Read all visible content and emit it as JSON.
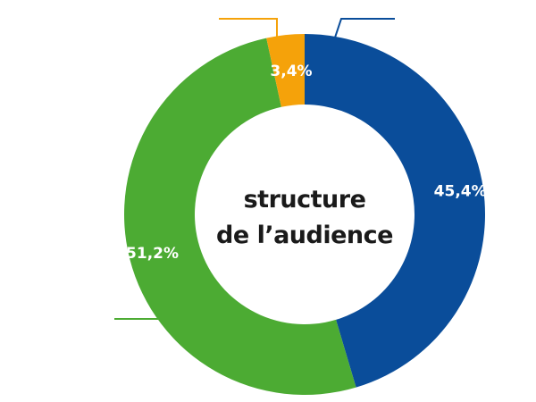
{
  "chart_data": {
    "type": "pie",
    "title": "structure de l’audience",
    "title_lines": [
      "structure",
      "de l’audience"
    ],
    "categories": [
      "",
      "",
      ""
    ],
    "values": [
      45.4,
      51.2,
      3.4
    ],
    "labels": [
      "45,4%",
      "51,2%",
      "3,4%"
    ],
    "colors": [
      "#0a4d9a",
      "#4cab33",
      "#f5a20a"
    ],
    "donut": true,
    "legend": "none"
  }
}
